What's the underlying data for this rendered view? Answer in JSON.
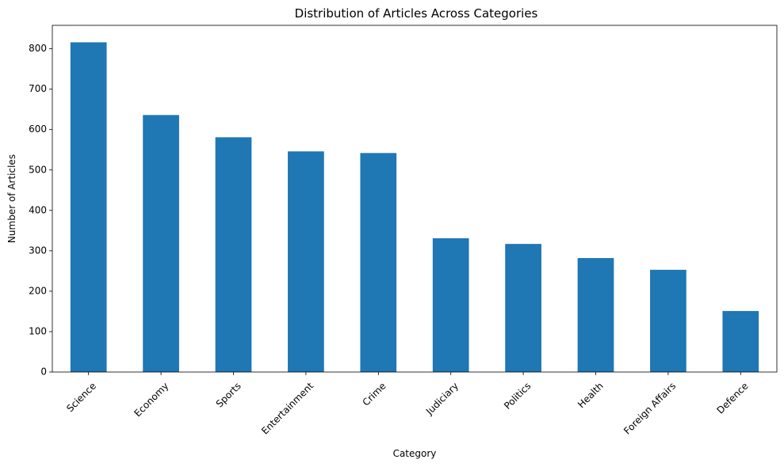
{
  "chart_data": {
    "type": "bar",
    "title": "Distribution of Articles Across Categories",
    "xlabel": "Category",
    "ylabel": "Number of Articles",
    "categories": [
      "Science",
      "Economy",
      "Sports",
      "Entertainment",
      "Crime",
      "Judiciary",
      "Politics",
      "Health",
      "Foreign Affairs",
      "Defence"
    ],
    "values": [
      816,
      636,
      581,
      546,
      542,
      331,
      317,
      282,
      253,
      151
    ],
    "ylim": [
      0,
      858
    ],
    "yticks": [
      0,
      100,
      200,
      300,
      400,
      500,
      600,
      700,
      800
    ],
    "bar_color": "#1f77b4",
    "grid": false,
    "legend": "none"
  }
}
